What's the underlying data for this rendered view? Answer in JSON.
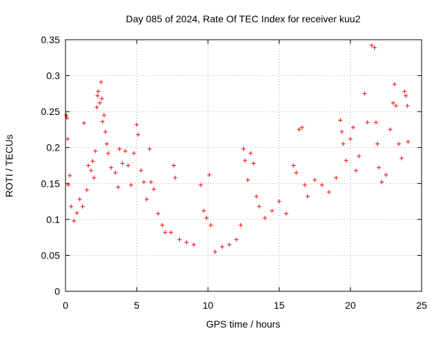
{
  "chart_data": {
    "type": "scatter",
    "title": "Day 085 of 2024, Rate Of TEC Index for receiver kuu2",
    "xlabel": "GPS time / hours",
    "ylabel": "ROTI / TECUs",
    "xlim": [
      0,
      25
    ],
    "ylim": [
      0,
      0.35
    ],
    "xticks": [
      {
        "value": 0,
        "label": "0"
      },
      {
        "value": 5,
        "label": "5"
      },
      {
        "value": 10,
        "label": "10"
      },
      {
        "value": 15,
        "label": "15"
      },
      {
        "value": 20,
        "label": "20"
      },
      {
        "value": 25,
        "label": "25"
      }
    ],
    "yticks": [
      {
        "value": 0,
        "label": "0"
      },
      {
        "value": 0.05,
        "label": "0.05"
      },
      {
        "value": 0.1,
        "label": "0.1"
      },
      {
        "value": 0.15,
        "label": "0.15"
      },
      {
        "value": 0.2,
        "label": "0.2"
      },
      {
        "value": 0.25,
        "label": "0.25"
      },
      {
        "value": 0.3,
        "label": "0.3"
      },
      {
        "value": 0.35,
        "label": "0.35"
      }
    ],
    "grid": true,
    "marker": "+",
    "series": [
      {
        "color": "#ff0000",
        "points": [
          [
            0.05,
            0.245
          ],
          [
            0.1,
            0.241
          ],
          [
            0.15,
            0.212
          ],
          [
            0.2,
            0.148
          ],
          [
            0.3,
            0.161
          ],
          [
            0.4,
            0.118
          ],
          [
            0.6,
            0.098
          ],
          [
            0.8,
            0.109
          ],
          [
            1.0,
            0.128
          ],
          [
            1.2,
            0.118
          ],
          [
            1.3,
            0.234
          ],
          [
            1.5,
            0.141
          ],
          [
            1.6,
            0.175
          ],
          [
            1.8,
            0.168
          ],
          [
            1.9,
            0.181
          ],
          [
            2.0,
            0.158
          ],
          [
            2.1,
            0.195
          ],
          [
            2.2,
            0.256
          ],
          [
            2.25,
            0.272
          ],
          [
            2.3,
            0.278
          ],
          [
            2.4,
            0.262
          ],
          [
            2.5,
            0.291
          ],
          [
            2.55,
            0.268
          ],
          [
            2.6,
            0.236
          ],
          [
            2.7,
            0.245
          ],
          [
            2.8,
            0.222
          ],
          [
            2.9,
            0.205
          ],
          [
            3.0,
            0.192
          ],
          [
            3.2,
            0.172
          ],
          [
            3.5,
            0.165
          ],
          [
            3.7,
            0.145
          ],
          [
            3.8,
            0.198
          ],
          [
            4.0,
            0.178
          ],
          [
            4.2,
            0.195
          ],
          [
            4.4,
            0.175
          ],
          [
            4.6,
            0.148
          ],
          [
            4.8,
            0.192
          ],
          [
            5.0,
            0.232
          ],
          [
            5.1,
            0.218
          ],
          [
            5.3,
            0.168
          ],
          [
            5.5,
            0.152
          ],
          [
            5.7,
            0.128
          ],
          [
            5.9,
            0.198
          ],
          [
            6.0,
            0.152
          ],
          [
            6.2,
            0.142
          ],
          [
            6.5,
            0.108
          ],
          [
            6.8,
            0.092
          ],
          [
            7.0,
            0.082
          ],
          [
            7.4,
            0.082
          ],
          [
            7.6,
            0.175
          ],
          [
            7.7,
            0.158
          ],
          [
            8.0,
            0.072
          ],
          [
            8.5,
            0.068
          ],
          [
            9.0,
            0.065
          ],
          [
            9.5,
            0.148
          ],
          [
            9.7,
            0.112
          ],
          [
            9.9,
            0.102
          ],
          [
            10.1,
            0.162
          ],
          [
            10.2,
            0.092
          ],
          [
            10.5,
            0.055
          ],
          [
            11.0,
            0.062
          ],
          [
            11.5,
            0.065
          ],
          [
            12.0,
            0.072
          ],
          [
            12.3,
            0.092
          ],
          [
            12.5,
            0.198
          ],
          [
            12.6,
            0.182
          ],
          [
            12.8,
            0.155
          ],
          [
            13.0,
            0.192
          ],
          [
            13.2,
            0.178
          ],
          [
            13.4,
            0.132
          ],
          [
            13.6,
            0.118
          ],
          [
            14.0,
            0.102
          ],
          [
            14.5,
            0.112
          ],
          [
            15.0,
            0.125
          ],
          [
            15.5,
            0.108
          ],
          [
            16.0,
            0.175
          ],
          [
            16.2,
            0.165
          ],
          [
            16.4,
            0.225
          ],
          [
            16.6,
            0.228
          ],
          [
            16.8,
            0.148
          ],
          [
            17.0,
            0.132
          ],
          [
            17.5,
            0.155
          ],
          [
            18.0,
            0.148
          ],
          [
            18.5,
            0.138
          ],
          [
            19.0,
            0.158
          ],
          [
            19.3,
            0.238
          ],
          [
            19.4,
            0.222
          ],
          [
            19.5,
            0.205
          ],
          [
            19.7,
            0.182
          ],
          [
            20.0,
            0.212
          ],
          [
            20.2,
            0.228
          ],
          [
            20.4,
            0.168
          ],
          [
            20.6,
            0.188
          ],
          [
            21.0,
            0.275
          ],
          [
            21.2,
            0.235
          ],
          [
            21.5,
            0.342
          ],
          [
            21.7,
            0.339
          ],
          [
            21.8,
            0.235
          ],
          [
            21.9,
            0.205
          ],
          [
            22.0,
            0.172
          ],
          [
            22.2,
            0.152
          ],
          [
            22.5,
            0.162
          ],
          [
            22.8,
            0.225
          ],
          [
            23.0,
            0.262
          ],
          [
            23.1,
            0.288
          ],
          [
            23.2,
            0.258
          ],
          [
            23.4,
            0.205
          ],
          [
            23.6,
            0.185
          ],
          [
            23.8,
            0.278
          ],
          [
            23.9,
            0.272
          ],
          [
            24.0,
            0.258
          ],
          [
            24.05,
            0.208
          ]
        ]
      }
    ]
  }
}
